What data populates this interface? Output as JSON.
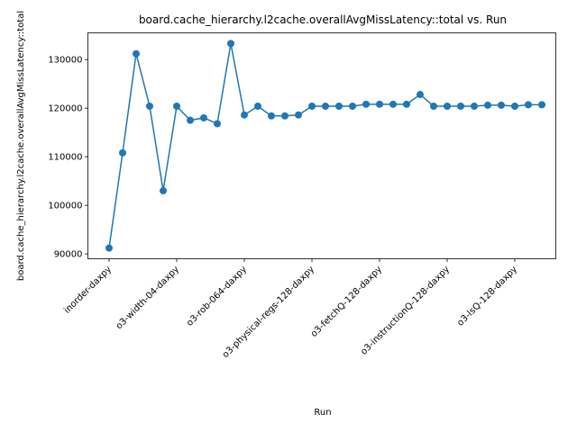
{
  "chart_data": {
    "type": "line",
    "title": "board.cache_hierarchy.l2cache.overallAvgMissLatency::total vs. Run",
    "xlabel": "Run",
    "ylabel": "board.cache_hierarchy.l2cache.overallAvgMissLatency::total",
    "ylim": [
      89000,
      135500
    ],
    "yticks": [
      90000,
      100000,
      110000,
      120000,
      130000
    ],
    "xtick_labels": [
      {
        "index": 0,
        "label": "inorder-daxpy"
      },
      {
        "index": 5,
        "label": "o3-width-04-daxpy"
      },
      {
        "index": 10,
        "label": "o3-rob-064-daxpy"
      },
      {
        "index": 15,
        "label": "o3-physical-regs-128-daxpy"
      },
      {
        "index": 20,
        "label": "o3-fetchQ-128-daxpy"
      },
      {
        "index": 25,
        "label": "o3-instructionQ-128-daxpy"
      },
      {
        "index": 30,
        "label": "o3-lsQ-128-daxpy"
      }
    ],
    "grid": false,
    "series": [
      {
        "color": "#1f77b4",
        "marker": "circle",
        "values": [
          91200,
          110800,
          131200,
          120400,
          103000,
          120400,
          117500,
          118000,
          116800,
          133300,
          118600,
          120400,
          118400,
          118400,
          118600,
          120400,
          120400,
          120400,
          120400,
          120800,
          120800,
          120800,
          120800,
          122800,
          120400,
          120400,
          120400,
          120400,
          120600,
          120600,
          120400,
          120700,
          120700
        ]
      }
    ]
  }
}
